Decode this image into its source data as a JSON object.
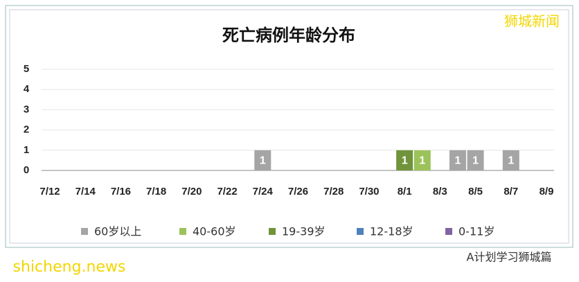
{
  "chart_data": {
    "type": "bar",
    "stacked": true,
    "title": "死亡病例年龄分布",
    "categories": [
      "7/12",
      null,
      "7/14",
      null,
      "7/16",
      null,
      "7/18",
      null,
      "7/20",
      null,
      "7/22",
      null,
      "7/24",
      null,
      "7/26",
      null,
      "7/28",
      null,
      "7/30",
      null,
      "8/1",
      null,
      "8/3",
      null,
      "8/5",
      null,
      "8/7",
      null,
      "8/9"
    ],
    "series": [
      {
        "name": "60岁以上",
        "color": "#a5a5a5",
        "values": [
          null,
          null,
          null,
          null,
          null,
          null,
          null,
          null,
          null,
          null,
          null,
          null,
          1,
          null,
          null,
          null,
          null,
          null,
          null,
          null,
          null,
          null,
          null,
          1,
          1,
          null,
          1,
          null,
          null
        ]
      },
      {
        "name": "40-60岁",
        "color": "#9bc35a",
        "values": [
          null,
          null,
          null,
          null,
          null,
          null,
          null,
          null,
          null,
          null,
          null,
          null,
          null,
          null,
          null,
          null,
          null,
          null,
          null,
          null,
          null,
          1,
          null,
          null,
          null,
          null,
          null,
          null,
          null
        ]
      },
      {
        "name": "19-39岁",
        "color": "#71933c",
        "values": [
          null,
          null,
          null,
          null,
          null,
          null,
          null,
          null,
          null,
          null,
          null,
          null,
          null,
          null,
          null,
          null,
          null,
          null,
          null,
          null,
          1,
          null,
          null,
          null,
          null,
          null,
          null,
          null,
          null
        ]
      },
      {
        "name": "12-18岁",
        "color": "#4f81bd",
        "values": [
          null,
          null,
          null,
          null,
          null,
          null,
          null,
          null,
          null,
          null,
          null,
          null,
          null,
          null,
          null,
          null,
          null,
          null,
          null,
          null,
          null,
          null,
          null,
          null,
          null,
          null,
          null,
          null,
          null
        ]
      },
      {
        "name": "0-11岁",
        "color": "#8064a2",
        "values": [
          null,
          null,
          null,
          null,
          null,
          null,
          null,
          null,
          null,
          null,
          null,
          null,
          null,
          null,
          null,
          null,
          null,
          null,
          null,
          null,
          null,
          null,
          null,
          null,
          null,
          null,
          null,
          null,
          null
        ]
      }
    ],
    "ylim": [
      0,
      5
    ],
    "yticks": [
      0,
      1,
      2,
      3,
      4,
      5
    ],
    "grid": true,
    "legend": "bottom"
  },
  "watermarks": {
    "top_right": "狮城新闻",
    "bottom_left": "shicheng.news",
    "bottom_right": "A计划学习狮城篇"
  }
}
